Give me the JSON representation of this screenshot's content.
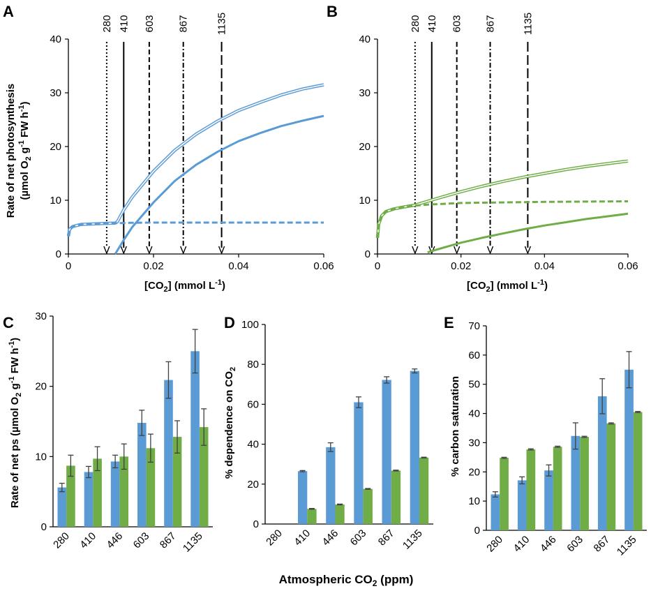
{
  "colors": {
    "blue": "#5B9BD5",
    "green": "#70AD47",
    "axis": "#000000",
    "error": "#404040"
  },
  "panels": {
    "A": {
      "label": "A",
      "xlabel_main": "[CO",
      "xlabel_sub": "2",
      "xlabel_rest": "] (mmol L",
      "xlabel_sup": "-1",
      "xlabel_end": ")",
      "ylabel_line1": "Rate of net photosynthesis",
      "ylabel_line2_a": "(µmol O",
      "ylabel_line2_sub": "2",
      "ylabel_line2_b": " g",
      "ylabel_line2_sup": "-1",
      "ylabel_line2_c": " FW h",
      "ylabel_line2_sup2": "-1",
      "ylabel_line2_d": ")"
    },
    "B": {
      "label": "B",
      "xlabel_main": "[CO",
      "xlabel_sub": "2",
      "xlabel_rest": "] (mmol L",
      "xlabel_sup": "-1",
      "xlabel_end": ")"
    },
    "C": {
      "label": "C",
      "ylabel_a": "Rate of net ps (µmol O",
      "ylabel_sub": "2",
      "ylabel_b": " g",
      "ylabel_sup": "-1",
      "ylabel_c": " FW h",
      "ylabel_sup2": "-1",
      "ylabel_d": ")"
    },
    "D": {
      "label": "D",
      "ylabel_a": "% dependence on CO",
      "ylabel_sub": "2",
      "xlabel": "Atmospheric CO",
      "xlabel_sub": "2",
      "xlabel_end": " (ppm)"
    },
    "E": {
      "label": "E",
      "ylabel": "% carbon saturation"
    }
  },
  "chart_data": [
    {
      "id": "A",
      "type": "line",
      "xlabel": "[CO2] (mmol L-1)",
      "ylabel": "Rate of net photosynthesis (µmol O2 g-1 FW h-1)",
      "xlim": [
        0,
        0.06
      ],
      "ylim": [
        0,
        40
      ],
      "xticks": [
        0,
        0.02,
        0.04,
        0.06
      ],
      "xtick_labels": [
        "0",
        "0.02",
        "0.04",
        "0.06"
      ],
      "yticks": [
        0,
        10,
        20,
        30,
        40
      ],
      "ytick_labels": [
        "0",
        "10",
        "20",
        "30",
        "40"
      ],
      "co2_markers": [
        {
          "label": "280",
          "x": 0.009,
          "style": "dotted"
        },
        {
          "label": "410",
          "x": 0.013,
          "style": "solid"
        },
        {
          "label": "603",
          "x": 0.019,
          "style": "dashed"
        },
        {
          "label": "867",
          "x": 0.027,
          "style": "dashdot"
        },
        {
          "label": "1135",
          "x": 0.036,
          "style": "longdash"
        }
      ],
      "series": [
        {
          "name": "total",
          "style": "double",
          "color": "#5B9BD5",
          "x": [
            0.0,
            0.0003,
            0.001,
            0.003,
            0.006,
            0.009,
            0.011,
            0.0115,
            0.013,
            0.015,
            0.02,
            0.025,
            0.03,
            0.035,
            0.04,
            0.045,
            0.05,
            0.055,
            0.06
          ],
          "y": [
            3.3,
            4.6,
            5.1,
            5.5,
            5.6,
            5.7,
            5.75,
            6.0,
            8.2,
            10.6,
            15.4,
            19.3,
            22.3,
            24.7,
            26.7,
            28.2,
            29.6,
            30.7,
            31.5
          ]
        },
        {
          "name": "co2-independent",
          "style": "dashed",
          "color": "#5B9BD5",
          "x": [
            0.0,
            0.0003,
            0.001,
            0.003,
            0.006,
            0.009,
            0.015,
            0.02,
            0.03,
            0.04,
            0.05,
            0.06
          ],
          "y": [
            3.3,
            4.6,
            5.1,
            5.5,
            5.6,
            5.7,
            5.8,
            5.85,
            5.85,
            5.85,
            5.85,
            5.85
          ]
        },
        {
          "name": "co2-dependent",
          "style": "solid",
          "color": "#5B9BD5",
          "x": [
            0.011,
            0.013,
            0.015,
            0.02,
            0.025,
            0.03,
            0.035,
            0.04,
            0.045,
            0.05,
            0.055,
            0.06
          ],
          "y": [
            0.0,
            2.6,
            5.0,
            9.6,
            13.6,
            16.6,
            19.0,
            21.0,
            22.5,
            23.8,
            24.8,
            25.7
          ]
        }
      ]
    },
    {
      "id": "B",
      "type": "line",
      "xlabel": "[CO2] (mmol L-1)",
      "xlim": [
        0,
        0.06
      ],
      "ylim": [
        0,
        40
      ],
      "xticks": [
        0,
        0.02,
        0.04,
        0.06
      ],
      "xtick_labels": [
        "0",
        "0.02",
        "0.04",
        "0.06"
      ],
      "yticks": [
        0,
        10,
        20,
        30,
        40
      ],
      "ytick_labels": [
        "0",
        "10",
        "20",
        "30",
        "40"
      ],
      "co2_markers": [
        {
          "label": "280",
          "x": 0.009,
          "style": "dotted"
        },
        {
          "label": "410",
          "x": 0.013,
          "style": "solid"
        },
        {
          "label": "603",
          "x": 0.019,
          "style": "dashed"
        },
        {
          "label": "867",
          "x": 0.027,
          "style": "dashdot"
        },
        {
          "label": "1135",
          "x": 0.036,
          "style": "longdash"
        }
      ],
      "series": [
        {
          "name": "total",
          "style": "double",
          "color": "#70AD47",
          "x": [
            0.0,
            0.0003,
            0.001,
            0.002,
            0.004,
            0.006,
            0.009,
            0.012,
            0.015,
            0.02,
            0.025,
            0.03,
            0.035,
            0.04,
            0.045,
            0.05,
            0.055,
            0.06
          ],
          "y": [
            3.0,
            5.6,
            7.1,
            7.9,
            8.4,
            8.7,
            9.1,
            9.8,
            10.5,
            11.6,
            12.6,
            13.5,
            14.3,
            15.0,
            15.7,
            16.3,
            16.8,
            17.3
          ]
        },
        {
          "name": "co2-independent",
          "style": "dashed",
          "color": "#70AD47",
          "x": [
            0.0,
            0.0003,
            0.001,
            0.002,
            0.004,
            0.006,
            0.009,
            0.012,
            0.015,
            0.02,
            0.03,
            0.04,
            0.05,
            0.06
          ],
          "y": [
            3.0,
            5.6,
            7.1,
            7.9,
            8.4,
            8.7,
            9.0,
            9.2,
            9.3,
            9.5,
            9.6,
            9.7,
            9.75,
            9.8
          ]
        },
        {
          "name": "co2-dependent",
          "style": "solid",
          "color": "#70AD47",
          "x": [
            0.012,
            0.015,
            0.02,
            0.025,
            0.03,
            0.035,
            0.04,
            0.045,
            0.05,
            0.055,
            0.06
          ],
          "y": [
            0.3,
            1.0,
            2.1,
            3.0,
            3.8,
            4.6,
            5.3,
            5.9,
            6.5,
            7.0,
            7.5
          ]
        }
      ]
    },
    {
      "id": "C",
      "type": "bar",
      "categories": [
        "280",
        "410",
        "446",
        "603",
        "867",
        "1135"
      ],
      "ylabel": "Rate of net ps (µmol O2 g-1 FW h-1)",
      "ylim": [
        0,
        30
      ],
      "yticks": [
        0,
        10,
        20,
        30
      ],
      "ytick_labels": [
        "0",
        "10",
        "20",
        "30"
      ],
      "series": [
        {
          "name": "blue",
          "color": "#5B9BD5",
          "values": [
            5.6,
            7.8,
            9.3,
            14.8,
            20.9,
            25.0
          ],
          "errors": [
            0.6,
            0.8,
            0.9,
            1.8,
            2.6,
            3.1
          ]
        },
        {
          "name": "green",
          "color": "#70AD47",
          "values": [
            8.7,
            9.7,
            10.0,
            11.2,
            12.8,
            14.2
          ],
          "errors": [
            1.5,
            1.7,
            1.8,
            2.0,
            2.3,
            2.6
          ]
        }
      ]
    },
    {
      "id": "D",
      "type": "bar",
      "categories": [
        "280",
        "410",
        "446",
        "603",
        "867",
        "1135"
      ],
      "ylabel": "% dependence on CO2",
      "xlabel": "Atmospheric CO2 (ppm)",
      "ylim": [
        0,
        100
      ],
      "yticks": [
        0,
        20,
        40,
        60,
        80,
        100
      ],
      "ytick_labels": [
        "0",
        "20",
        "40",
        "60",
        "80",
        "100"
      ],
      "series": [
        {
          "name": "blue",
          "color": "#5B9BD5",
          "values": [
            0,
            26.5,
            38.5,
            61.0,
            72.2,
            76.7
          ],
          "errors": [
            0,
            0.3,
            2.2,
            2.7,
            1.6,
            1.0
          ]
        },
        {
          "name": "green",
          "color": "#70AD47",
          "values": [
            0,
            7.6,
            9.8,
            17.6,
            26.8,
            33.3
          ],
          "errors": [
            0,
            0.2,
            0.2,
            0.2,
            0.2,
            0.2
          ]
        }
      ]
    },
    {
      "id": "E",
      "type": "bar",
      "categories": [
        "280",
        "410",
        "446",
        "603",
        "867",
        "1135"
      ],
      "ylabel": "% carbon saturation",
      "ylim": [
        0,
        70
      ],
      "yticks": [
        0,
        10,
        20,
        30,
        40,
        50,
        60,
        70
      ],
      "ytick_labels": [
        "0",
        "10",
        "20",
        "30",
        "40",
        "50",
        "60",
        "70"
      ],
      "series": [
        {
          "name": "blue",
          "color": "#5B9BD5",
          "values": [
            12.3,
            17.1,
            20.5,
            32.3,
            45.9,
            55.0
          ],
          "errors": [
            0.9,
            1.2,
            1.9,
            4.5,
            6.0,
            6.2
          ]
        },
        {
          "name": "green",
          "color": "#70AD47",
          "values": [
            24.8,
            27.7,
            28.6,
            32.0,
            36.6,
            40.5
          ],
          "errors": [
            0.2,
            0.2,
            0.2,
            0.2,
            0.2,
            0.2
          ]
        }
      ]
    }
  ]
}
